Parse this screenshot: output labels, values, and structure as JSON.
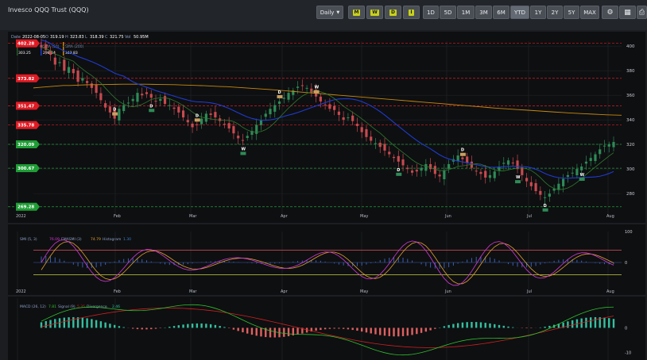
{
  "header": {
    "title": "Invesco QQQ Trust (QQQ)",
    "interval_label": "Daily",
    "freq_buttons": [
      "M",
      "W",
      "D",
      "I"
    ],
    "ranges": [
      "1D",
      "5D",
      "1M",
      "3M",
      "6M",
      "YTD",
      "1Y",
      "2Y",
      "5Y",
      "MAX"
    ],
    "active_range": "YTD",
    "tool_icons": [
      "settings-icon",
      "save-icon",
      "print-icon"
    ]
  },
  "price_info": {
    "date_label": "Date",
    "date": "2022-08-05",
    "open_label": "O",
    "open": "319.19",
    "high_label": "H",
    "high": "323.83",
    "low_label": "L",
    "low": "318.39",
    "close_label": "C",
    "close": "321.75",
    "volume_label": "Vol",
    "volume": "50.95M",
    "sma50_label": "SMA (50)",
    "sma50": "298.44",
    "sma200_label": "SMA (200)",
    "sma200": "343.83",
    "sma20_value": "303.25"
  },
  "chart_data": [
    {
      "type": "candlestick",
      "name": "price",
      "ylim": [
        262,
        404
      ],
      "y_ticks": [
        280,
        300,
        320,
        340,
        360,
        380,
        400
      ],
      "x_labels": [
        "2022",
        "Feb",
        "Mar",
        "Apr",
        "May",
        "Jun",
        "Jul",
        "Aug"
      ],
      "colors": {
        "up": "#2e8b57",
        "down": "#c84a4f",
        "sma50": "#1f3bd0",
        "sma200": "#c8890f",
        "sma20": "#2f7a2f"
      },
      "levels": [
        {
          "value": 402.28,
          "label": "402.28",
          "color": "#e01b24",
          "style": "dashed"
        },
        {
          "value": 373.82,
          "label": "373.82",
          "color": "#e01b24",
          "style": "dashed"
        },
        {
          "value": 351.47,
          "label": "351.47",
          "color": "#e01b24",
          "style": "dashed"
        },
        {
          "value": 335.78,
          "label": "335.78",
          "color": "#e01b24",
          "style": "dashed"
        },
        {
          "value": 320.09,
          "label": "320.09",
          "color": "#1f9e36",
          "style": "dashed"
        },
        {
          "value": 300.67,
          "label": "300.67",
          "color": "#1f9e36",
          "style": "dashed"
        },
        {
          "value": 269.28,
          "label": "269.28",
          "color": "#1f9e36",
          "style": "dashed"
        }
      ],
      "closes": [
        399,
        397,
        393,
        385,
        387,
        380,
        383,
        378,
        371,
        374,
        370,
        366,
        362,
        356,
        350,
        346,
        341,
        349,
        352,
        354,
        357,
        362,
        360,
        361,
        358,
        355,
        357,
        353,
        352,
        349,
        346,
        342,
        338,
        334,
        336,
        341,
        345,
        344,
        342,
        339,
        336,
        333,
        329,
        325,
        323,
        327,
        331,
        336,
        340,
        345,
        349,
        352,
        355,
        358,
        362,
        364,
        367,
        368,
        366,
        362,
        359,
        355,
        352,
        349,
        348,
        344,
        340,
        342,
        339,
        335,
        330,
        326,
        323,
        321,
        318,
        315,
        312,
        309,
        306,
        303,
        300,
        297,
        298,
        301,
        304,
        300,
        296,
        294,
        299,
        304,
        308,
        311,
        308,
        305,
        301,
        298,
        296,
        293,
        295,
        298,
        302,
        305,
        307,
        305,
        300,
        295,
        290,
        286,
        282,
        279,
        277,
        280,
        284,
        288,
        292,
        295,
        297,
        300,
        302,
        306,
        309,
        312,
        316,
        319,
        320,
        322
      ],
      "sma200": [
        366,
        366.5,
        367,
        367.5,
        368,
        368,
        368.3,
        368.5,
        368.6,
        368.7,
        368.8,
        368.9,
        369,
        369,
        369,
        369,
        368.9,
        368.8,
        368.7,
        368.6,
        368.4,
        368.2,
        368,
        367.8,
        367.5,
        367.2,
        367,
        366.6,
        366.2,
        365.8,
        365.4,
        365,
        364.6,
        364.1,
        363.6,
        363.1,
        362.6,
        362.1,
        361.6,
        361.1,
        360.6,
        360.1,
        359.6,
        359.1,
        358.6,
        358.1,
        357.6,
        357.1,
        356.6,
        356.1,
        355.6,
        355.1,
        354.6,
        354.1,
        353.6,
        353.1,
        352.6,
        352.1,
        351.6,
        351.1,
        350.6,
        350.1,
        349.6,
        349.2,
        348.8,
        348.4,
        348,
        347.6,
        347.2,
        346.8,
        346.4,
        346,
        345.6,
        345.3,
        345,
        344.7,
        344.4,
        344.1,
        343.9,
        343.8
      ]
    },
    {
      "type": "line",
      "name": "SMI oscillator",
      "label": "SMI (5, 3)",
      "value": "76.09",
      "signal_label": "EMASMI (3)",
      "signal_value": "74.79",
      "hist_label": "Histogram",
      "hist_value": "1.30",
      "ylim": [
        -100,
        100
      ],
      "y_ticks": [
        100,
        0
      ],
      "levels": [
        40,
        -40
      ],
      "colors": {
        "smi": "#d63ad6",
        "signal": "#e0a030",
        "hist": "#3a5fb0",
        "level": "#e05060",
        "level_low": "#c8d040"
      }
    },
    {
      "type": "line",
      "name": "MACD",
      "label": "MACD (26, 12)",
      "value": "7.81",
      "signal_label": "Signal (9)",
      "signal_value": "5.35",
      "div_label": "Divergence",
      "div_value": "2.46",
      "ylim": [
        -13,
        12
      ],
      "y_ticks": [
        0,
        -10
      ],
      "colors": {
        "macd": "#2ec02e",
        "signal": "#d02020",
        "pos": "#34c0a0",
        "neg": "#e06060"
      }
    }
  ],
  "markers": [
    "D",
    "W"
  ]
}
